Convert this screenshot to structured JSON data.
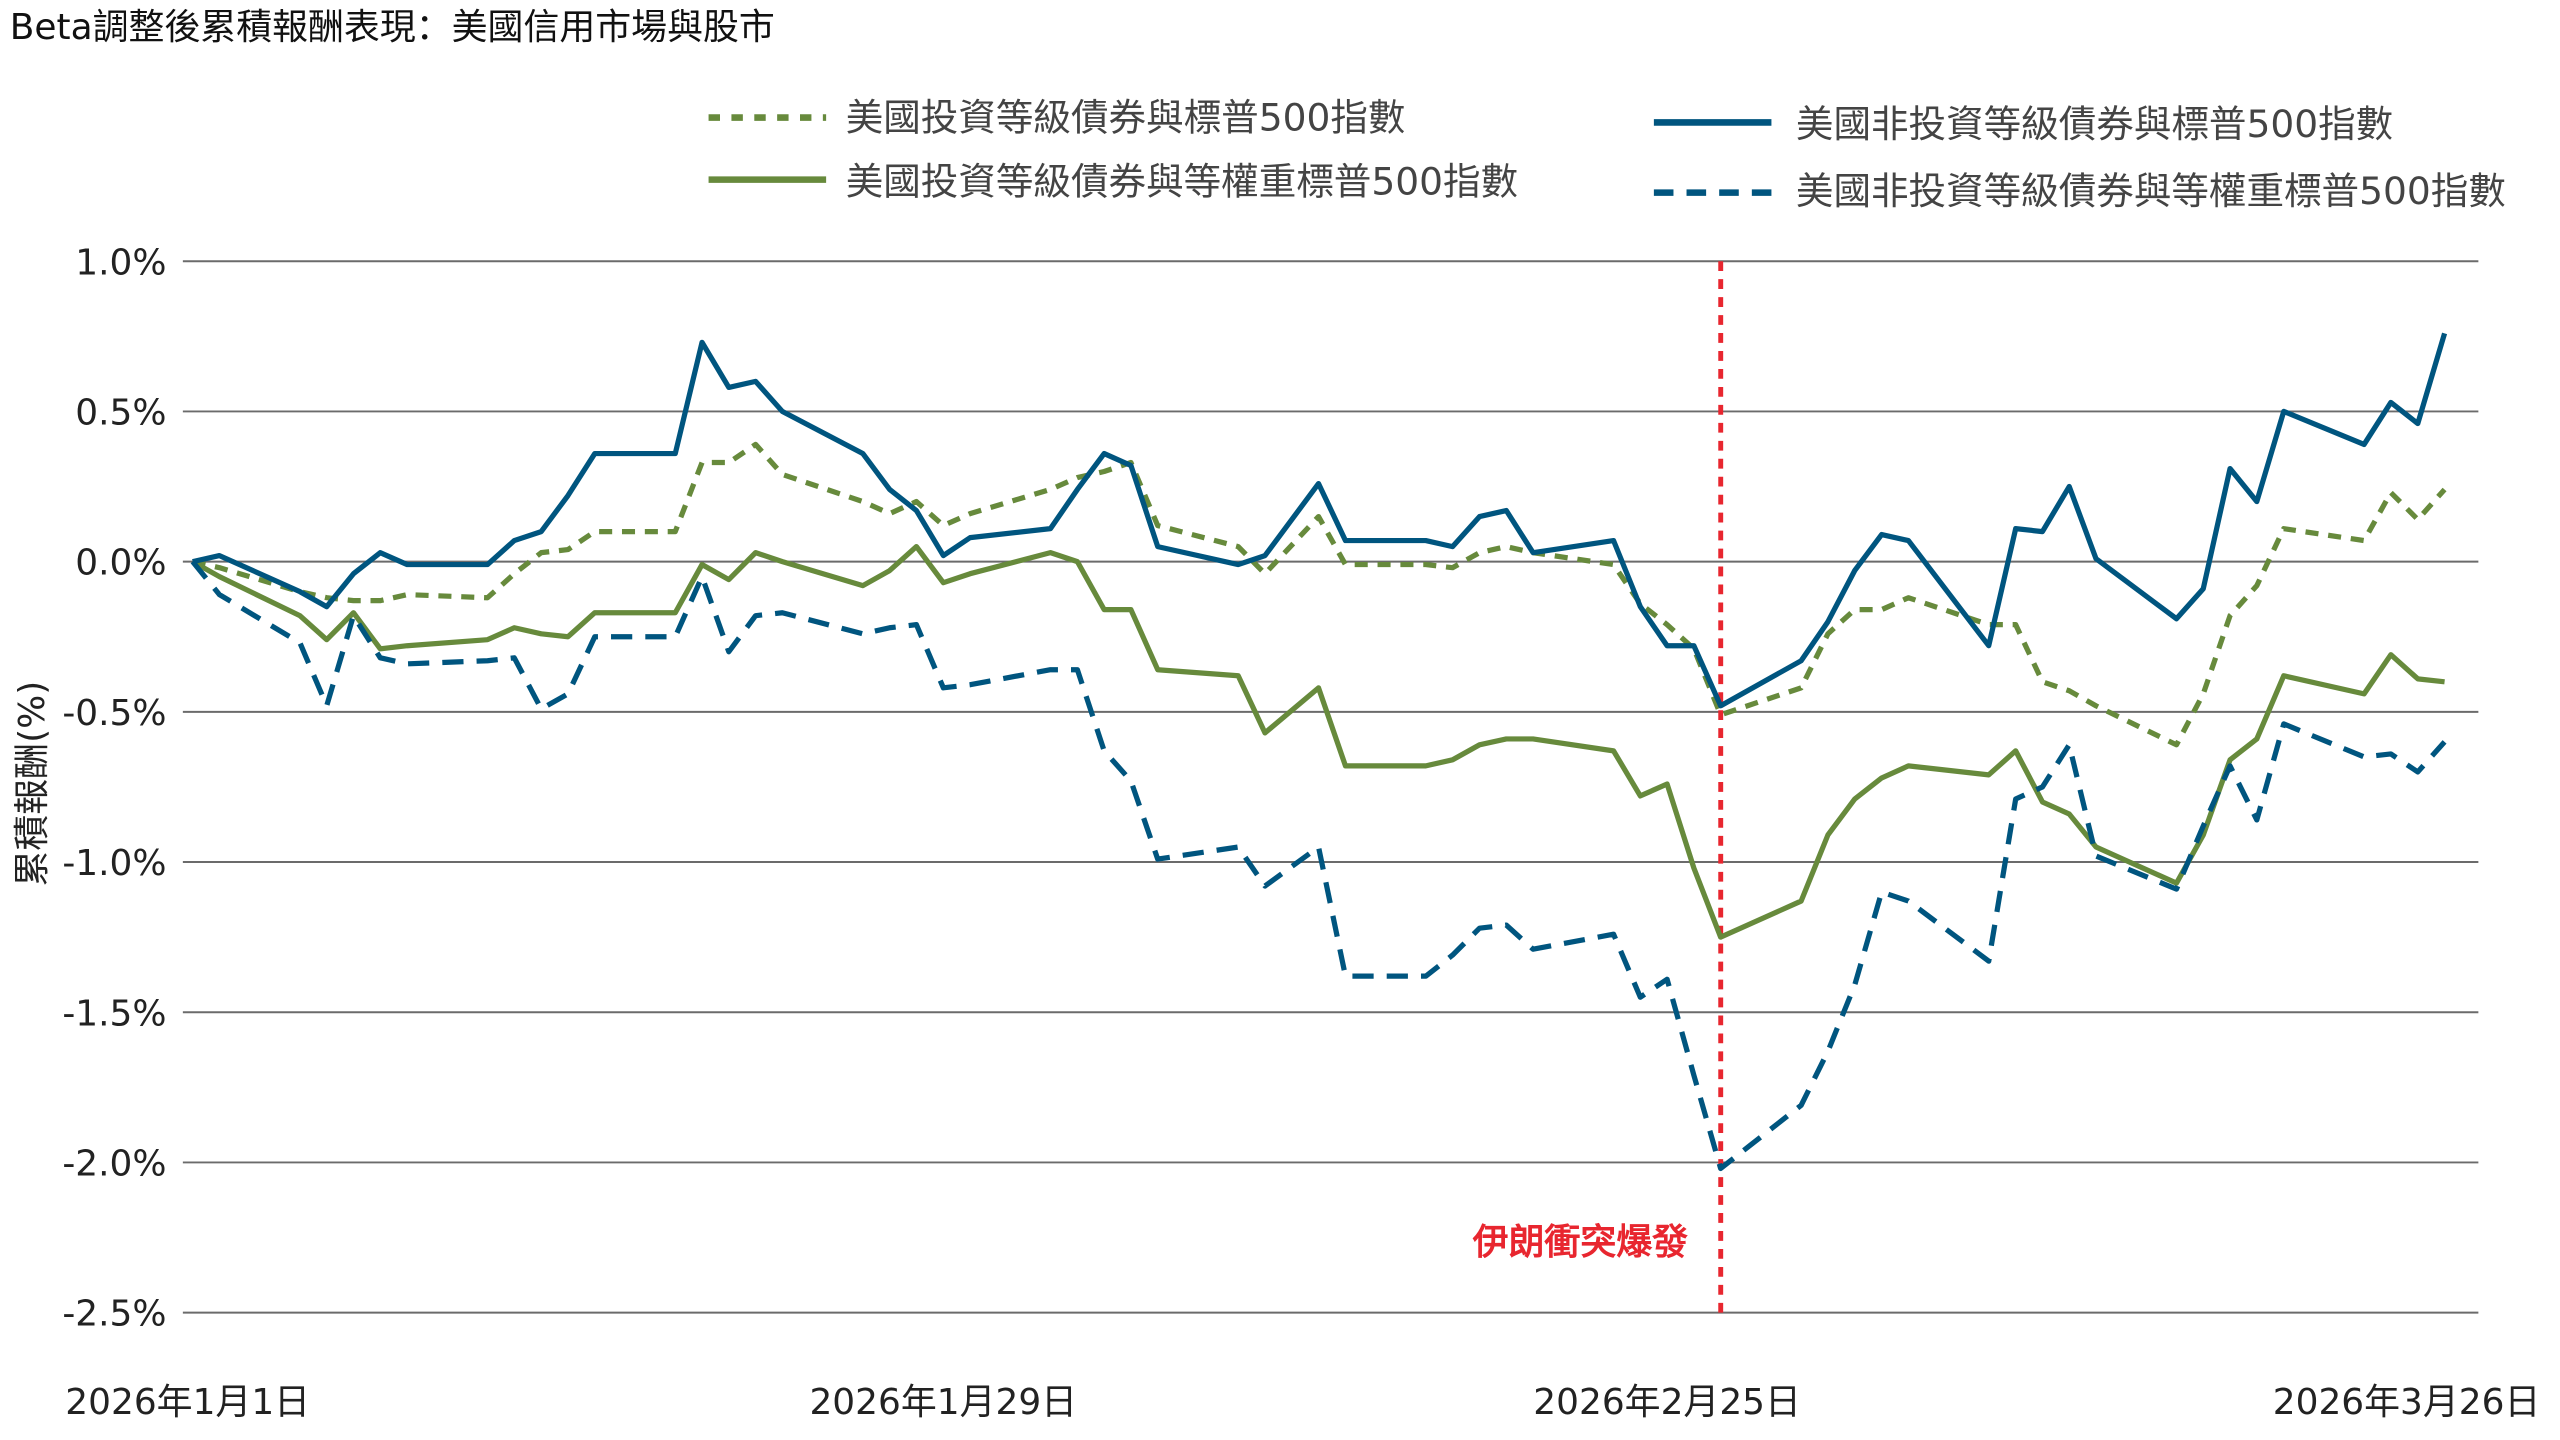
{
  "chart_data": {
    "type": "line",
    "title": "Beta調整後累積報酬表現：美國信用市場與股市",
    "ylabel": "累積報酬(%)",
    "xlabel": "",
    "ylim": [
      -2.5,
      1.0
    ],
    "yticks": [
      1.0,
      0.5,
      0.0,
      -0.5,
      -1.0,
      -1.5,
      -2.0,
      -2.5
    ],
    "ytick_labels": [
      "1.0%",
      "0.5%",
      "0.0%",
      "-0.5%",
      "-1.0%",
      "-1.5%",
      "-2.0%",
      "-2.5%"
    ],
    "xlim": [
      "2026-01-01",
      "2026-03-26"
    ],
    "xticks": [
      "2026-01-01",
      "2026-01-29",
      "2026-02-25",
      "2026-03-26"
    ],
    "xtick_labels": [
      "2026年1月1日",
      "2026年1月29日",
      "2026年2月25日",
      "2026年3月26日"
    ],
    "grid": "horizontal",
    "legend_position": "top",
    "annotation": {
      "date": "2026-02-27",
      "label": "伊朗衝突爆發",
      "color": "#e8262f",
      "style": "dotted vertical line"
    },
    "x": [
      "2026-01-01",
      "2026-01-02",
      "2026-01-05",
      "2026-01-06",
      "2026-01-07",
      "2026-01-08",
      "2026-01-09",
      "2026-01-12",
      "2026-01-13",
      "2026-01-14",
      "2026-01-15",
      "2026-01-16",
      "2026-01-19",
      "2026-01-20",
      "2026-01-21",
      "2026-01-22",
      "2026-01-23",
      "2026-01-26",
      "2026-01-27",
      "2026-01-28",
      "2026-01-29",
      "2026-01-30",
      "2026-02-02",
      "2026-02-03",
      "2026-02-04",
      "2026-02-05",
      "2026-02-06",
      "2026-02-09",
      "2026-02-10",
      "2026-02-12",
      "2026-02-13",
      "2026-02-16",
      "2026-02-17",
      "2026-02-18",
      "2026-02-19",
      "2026-02-20",
      "2026-02-23",
      "2026-02-24",
      "2026-02-25",
      "2026-02-26",
      "2026-02-27",
      "2026-03-02",
      "2026-03-03",
      "2026-03-04",
      "2026-03-05",
      "2026-03-06",
      "2026-03-09",
      "2026-03-10",
      "2026-03-11",
      "2026-03-12",
      "2026-03-13",
      "2026-03-16",
      "2026-03-17",
      "2026-03-18",
      "2026-03-19",
      "2026-03-20",
      "2026-03-23",
      "2026-03-24",
      "2026-03-25",
      "2026-03-26"
    ],
    "series": [
      {
        "name": "美國投資等級債券與標普500指數",
        "color": "#678a3c",
        "style": "dotted",
        "values": [
          0,
          -0.02,
          -0.1,
          -0.12,
          -0.13,
          -0.13,
          -0.11,
          -0.12,
          -0.04,
          0.03,
          0.04,
          0.1,
          0.1,
          0.33,
          0.33,
          0.39,
          0.29,
          0.2,
          0.16,
          0.2,
          0.12,
          0.16,
          0.24,
          0.28,
          0.3,
          0.33,
          0.12,
          0.05,
          -0.04,
          0.15,
          -0.01,
          -0.01,
          -0.02,
          0.03,
          0.05,
          0.03,
          -0.01,
          -0.14,
          -0.21,
          -0.29,
          -0.51,
          -0.42,
          -0.24,
          -0.16,
          -0.16,
          -0.12,
          -0.21,
          -0.21,
          -0.4,
          -0.43,
          -0.48,
          -0.61,
          -0.44,
          -0.18,
          -0.08,
          0.11,
          0.07,
          0.23,
          0.14,
          0.24
        ]
      },
      {
        "name": "美國投資等級債券與等權重標普500指數",
        "color": "#678a3c",
        "style": "solid",
        "values": [
          0,
          -0.05,
          -0.18,
          -0.26,
          -0.17,
          -0.29,
          -0.28,
          -0.26,
          -0.22,
          -0.24,
          -0.25,
          -0.17,
          -0.17,
          -0.01,
          -0.06,
          0.03,
          0.0,
          -0.08,
          -0.03,
          0.05,
          -0.07,
          -0.04,
          0.03,
          0.0,
          -0.16,
          -0.16,
          -0.36,
          -0.38,
          -0.57,
          -0.42,
          -0.68,
          -0.68,
          -0.66,
          -0.61,
          -0.59,
          -0.59,
          -0.63,
          -0.78,
          -0.74,
          -1.02,
          -1.25,
          -1.13,
          -0.91,
          -0.79,
          -0.72,
          -0.68,
          -0.71,
          -0.63,
          -0.8,
          -0.84,
          -0.95,
          -1.07,
          -0.91,
          -0.66,
          -0.59,
          -0.38,
          -0.44,
          -0.31,
          -0.39,
          -0.4
        ]
      },
      {
        "name": "美國非投資等級債券與標普500指數",
        "color": "#00557f",
        "style": "solid",
        "values": [
          0,
          0.02,
          -0.1,
          -0.15,
          -0.04,
          0.03,
          -0.01,
          -0.01,
          0.07,
          0.1,
          0.22,
          0.36,
          0.36,
          0.73,
          0.58,
          0.6,
          0.5,
          0.36,
          0.24,
          0.17,
          0.02,
          0.08,
          0.11,
          0.24,
          0.36,
          0.32,
          0.05,
          -0.01,
          0.02,
          0.26,
          0.07,
          0.07,
          0.05,
          0.15,
          0.17,
          0.03,
          0.07,
          -0.15,
          -0.28,
          -0.28,
          -0.48,
          -0.33,
          -0.2,
          -0.03,
          0.09,
          0.07,
          -0.28,
          0.11,
          0.1,
          0.25,
          0.01,
          -0.19,
          -0.09,
          0.31,
          0.2,
          0.5,
          0.39,
          0.53,
          0.46,
          0.76
        ]
      },
      {
        "name": "美國非投資等級債券與等權重標普500指數",
        "color": "#00557f",
        "style": "dashed",
        "values": [
          0,
          -0.11,
          -0.27,
          -0.48,
          -0.18,
          -0.32,
          -0.34,
          -0.33,
          -0.32,
          -0.49,
          -0.44,
          -0.25,
          -0.25,
          -0.05,
          -0.3,
          -0.18,
          -0.17,
          -0.24,
          -0.22,
          -0.21,
          -0.42,
          -0.41,
          -0.36,
          -0.36,
          -0.63,
          -0.73,
          -0.99,
          -0.95,
          -1.08,
          -0.95,
          -1.38,
          -1.38,
          -1.31,
          -1.22,
          -1.21,
          -1.29,
          -1.24,
          -1.45,
          -1.39,
          -1.71,
          -2.02,
          -1.81,
          -1.63,
          -1.41,
          -1.1,
          -1.13,
          -1.33,
          -0.79,
          -0.75,
          -0.61,
          -0.98,
          -1.09,
          -0.88,
          -0.68,
          -0.86,
          -0.54,
          -0.65,
          -0.64,
          -0.7,
          -0.6
        ]
      }
    ]
  }
}
